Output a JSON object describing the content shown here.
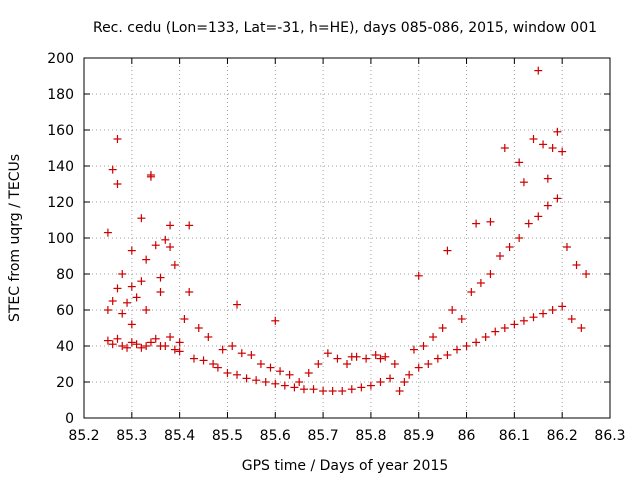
{
  "chart_data": {
    "type": "scatter",
    "title": "Rec. cedu (Lon=133, Lat=-31, h=HE), days 085-086, 2015, window 001",
    "xlabel": "GPS time / Days of year 2015",
    "ylabel": "STEC from uqrg / TECUs",
    "xlim": [
      85.2,
      86.3
    ],
    "ylim": [
      0,
      200
    ],
    "xticks": [
      "85.2",
      "85.3",
      "85.4",
      "85.5",
      "85.6",
      "85.7",
      "85.8",
      "85.9",
      "86",
      "86.1",
      "86.2",
      "86.3"
    ],
    "yticks": [
      "0",
      "20",
      "40",
      "60",
      "80",
      "100",
      "120",
      "140",
      "160",
      "180",
      "200"
    ],
    "grid": true,
    "marker": "+",
    "color": "#cc0000",
    "series": [
      {
        "name": "STEC",
        "x": [
          85.25,
          85.25,
          85.25,
          85.26,
          85.26,
          85.27,
          85.27,
          85.27,
          85.28,
          85.28,
          85.28,
          85.29,
          85.29,
          85.3,
          85.3,
          85.3,
          85.31,
          85.31,
          85.32,
          85.32,
          85.33,
          85.33,
          85.34,
          85.34,
          85.35,
          85.35,
          85.36,
          85.36,
          85.37,
          85.37,
          85.38,
          85.38,
          85.39,
          85.39,
          85.4,
          85.41,
          85.42,
          85.43,
          85.44,
          85.45,
          85.46,
          85.47,
          85.48,
          85.49,
          85.5,
          85.51,
          85.52,
          85.53,
          85.54,
          85.55,
          85.56,
          85.57,
          85.58,
          85.59,
          85.6,
          85.61,
          85.62,
          85.63,
          85.64,
          85.65,
          85.66,
          85.67,
          85.68,
          85.69,
          85.7,
          85.71,
          85.72,
          85.73,
          85.74,
          85.75,
          85.76,
          85.77,
          85.78,
          85.79,
          85.8,
          85.81,
          85.82,
          85.83,
          85.84,
          85.85,
          85.86,
          85.87,
          85.88,
          85.89,
          85.9,
          85.91,
          85.92,
          85.93,
          85.94,
          85.95,
          85.96,
          85.97,
          85.98,
          85.99,
          86.0,
          86.01,
          86.02,
          86.03,
          86.04,
          86.05,
          86.06,
          86.07,
          86.08,
          86.09,
          86.1,
          86.11,
          86.12,
          86.13,
          86.14,
          86.15,
          86.16,
          86.17,
          86.18,
          86.19,
          86.2,
          86.21,
          86.22,
          86.23,
          86.24,
          86.25,
          85.27,
          85.33,
          85.34,
          85.38,
          85.26,
          85.32,
          85.3,
          85.36,
          85.42,
          85.4,
          85.52,
          85.6,
          85.76,
          85.82,
          85.9,
          85.96,
          86.02,
          86.05,
          86.08,
          86.11,
          86.12,
          86.14,
          86.15,
          86.16,
          86.17,
          86.18,
          86.19,
          86.2
        ],
        "y": [
          43,
          60,
          103,
          41,
          65,
          44,
          72,
          155,
          40,
          58,
          80,
          39,
          64,
          42,
          93,
          52,
          41,
          67,
          39,
          111,
          40,
          60,
          42,
          135,
          44,
          96,
          40,
          70,
          40,
          99,
          45,
          107,
          38,
          85,
          37,
          55,
          70,
          33,
          50,
          32,
          45,
          30,
          28,
          38,
          25,
          40,
          24,
          36,
          22,
          35,
          21,
          30,
          20,
          28,
          19,
          26,
          18,
          24,
          17,
          20,
          16,
          25,
          16,
          30,
          15,
          36,
          15,
          33,
          15,
          30,
          16,
          34,
          17,
          33,
          18,
          35,
          20,
          34,
          22,
          30,
          15,
          20,
          24,
          38,
          28,
          40,
          30,
          45,
          33,
          50,
          35,
          60,
          38,
          55,
          40,
          70,
          42,
          75,
          45,
          80,
          48,
          90,
          50,
          95,
          52,
          100,
          54,
          108,
          56,
          112,
          58,
          118,
          60,
          122,
          62,
          95,
          55,
          85,
          50,
          80,
          130,
          88,
          134,
          95,
          138,
          76,
          73,
          78,
          107,
          42,
          63,
          54,
          34,
          33,
          79,
          93,
          108,
          109,
          150,
          142,
          131,
          155,
          193,
          152,
          133,
          150,
          159,
          148
        ]
      }
    ]
  }
}
